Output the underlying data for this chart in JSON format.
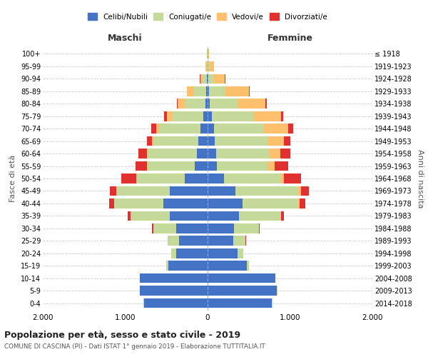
{
  "age_groups": [
    "0-4",
    "5-9",
    "10-14",
    "15-19",
    "20-24",
    "25-29",
    "30-34",
    "35-39",
    "40-44",
    "45-49",
    "50-54",
    "55-59",
    "60-64",
    "65-69",
    "70-74",
    "75-79",
    "80-84",
    "85-89",
    "90-94",
    "95-99",
    "100+"
  ],
  "birth_years": [
    "2014-2018",
    "2009-2013",
    "2004-2008",
    "1999-2003",
    "1994-1998",
    "1989-1993",
    "1984-1988",
    "1979-1983",
    "1974-1978",
    "1969-1973",
    "1964-1968",
    "1959-1963",
    "1954-1958",
    "1949-1953",
    "1944-1948",
    "1939-1943",
    "1934-1938",
    "1929-1933",
    "1924-1928",
    "1919-1923",
    "≤ 1918"
  ],
  "maschi": {
    "celibi": [
      770,
      820,
      820,
      480,
      380,
      350,
      380,
      460,
      540,
      460,
      280,
      160,
      130,
      110,
      90,
      55,
      30,
      18,
      10,
      4,
      2
    ],
    "coniugati": [
      5,
      5,
      5,
      20,
      60,
      130,
      280,
      470,
      590,
      640,
      580,
      560,
      590,
      540,
      490,
      380,
      250,
      150,
      50,
      15,
      4
    ],
    "vedovi": [
      0,
      0,
      0,
      0,
      1,
      1,
      2,
      3,
      5,
      8,
      10,
      12,
      20,
      25,
      40,
      60,
      80,
      80,
      30,
      8,
      2
    ],
    "divorziati": [
      0,
      0,
      0,
      1,
      3,
      5,
      10,
      40,
      60,
      80,
      180,
      140,
      100,
      60,
      60,
      30,
      10,
      5,
      2,
      1,
      0
    ]
  },
  "femmine": {
    "nubili": [
      780,
      840,
      820,
      480,
      360,
      310,
      320,
      380,
      420,
      340,
      200,
      110,
      100,
      90,
      80,
      50,
      30,
      20,
      10,
      4,
      2
    ],
    "coniugate": [
      5,
      5,
      5,
      20,
      70,
      150,
      300,
      500,
      680,
      760,
      680,
      620,
      650,
      640,
      600,
      500,
      330,
      200,
      70,
      20,
      4
    ],
    "vedove": [
      0,
      0,
      0,
      0,
      1,
      1,
      3,
      8,
      15,
      30,
      50,
      80,
      130,
      200,
      300,
      340,
      340,
      280,
      130,
      50,
      10
    ],
    "divorziate": [
      0,
      0,
      0,
      1,
      3,
      5,
      10,
      35,
      70,
      100,
      200,
      170,
      120,
      70,
      60,
      30,
      15,
      8,
      3,
      1,
      0
    ]
  },
  "colors": {
    "celibi": "#4472c4",
    "coniugati": "#c5d99b",
    "vedovi": "#ffc06e",
    "divorziati": "#e03030"
  },
  "title": "Popolazione per età, sesso e stato civile - 2019",
  "subtitle": "COMUNE DI CASCINA (PI) - Dati ISTAT 1° gennaio 2019 - Elaborazione TUTTITALIA.IT",
  "xlabel_left": "Maschi",
  "xlabel_right": "Femmine",
  "ylabel_left": "Fasce di età",
  "ylabel_right": "Anni di nascita",
  "xlim": 2000,
  "legend_labels": [
    "Celibi/Nubili",
    "Coniugati/e",
    "Vedovi/e",
    "Divorziati/e"
  ]
}
